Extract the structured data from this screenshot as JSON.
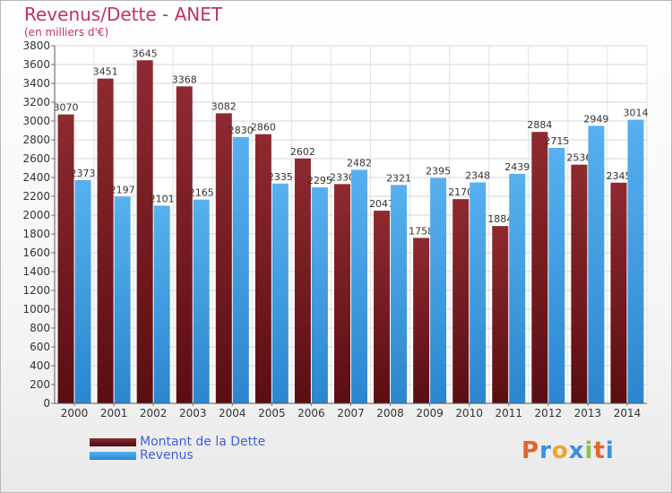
{
  "chart_data": {
    "type": "bar",
    "title": "Revenus/Dette - ANET",
    "subtitle": "(en milliers d'€)",
    "xlabel": "",
    "ylabel": "",
    "ylim": [
      0,
      3800
    ],
    "yticks": [
      0,
      200,
      400,
      600,
      800,
      1000,
      1200,
      1400,
      1600,
      1800,
      2000,
      2200,
      2400,
      2600,
      2800,
      3000,
      3200,
      3400,
      3600,
      3800
    ],
    "grid": true,
    "legend_position": "bottom-left",
    "categories": [
      "2000",
      "2001",
      "2002",
      "2003",
      "2004",
      "2005",
      "2006",
      "2007",
      "2008",
      "2009",
      "2010",
      "2011",
      "2012",
      "2013",
      "2014"
    ],
    "series": [
      {
        "name": "Montant de la Dette",
        "color": "#7a1e24",
        "values": [
          3070,
          3451,
          3645,
          3368,
          3082,
          2860,
          2602,
          2330,
          2047,
          1758,
          2170,
          1884,
          2884,
          2536,
          2345
        ],
        "labels": [
          "3070",
          "3451",
          "3645",
          "3368",
          "3082",
          "2860",
          "2602",
          "2330",
          "2047",
          "1758",
          "2170",
          "1884",
          "2884",
          "2536",
          "2345"
        ]
      },
      {
        "name": "Revenus",
        "color": "#3d9be6",
        "values": [
          2373,
          2197,
          2101,
          2165,
          2830,
          2335,
          2295,
          2482,
          2321,
          2395,
          2348,
          2439,
          2715,
          2949,
          3014
        ],
        "labels": [
          "2373",
          "2197",
          "2101",
          "2165",
          "2830",
          "2335",
          "2295",
          "2482",
          "2321",
          "2395",
          "2348",
          "2439",
          "2715",
          "2949",
          "3014"
        ]
      }
    ]
  },
  "logo": {
    "letters": [
      "P",
      "r",
      "o",
      "x",
      "i",
      "t",
      "i"
    ],
    "colors": [
      "#e8632b",
      "#3d8fd8",
      "#f0a22b",
      "#3d8fd8",
      "#8bc53f",
      "#e8632b",
      "#3d8fd8"
    ]
  }
}
